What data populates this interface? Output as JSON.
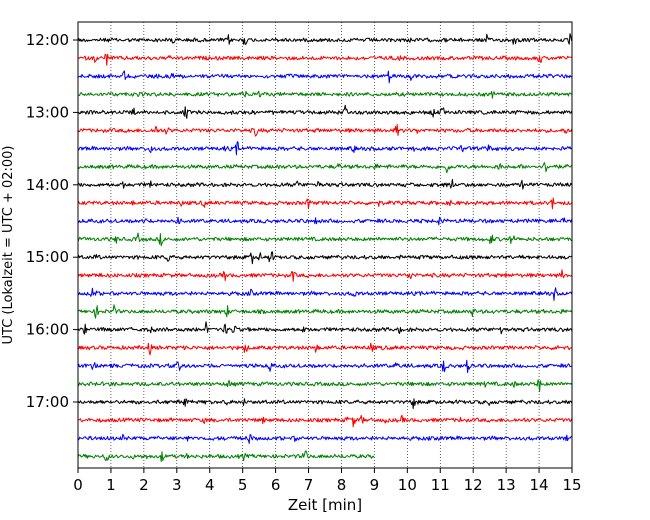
{
  "chart_data": {
    "type": "line",
    "title": "",
    "xlabel": "Zeit  [min]",
    "ylabel": "UTC (Lokalzeit = UTC + 02:00)",
    "xlim": [
      0,
      15
    ],
    "x_ticks": [
      "0",
      "1",
      "2",
      "3",
      "4",
      "5",
      "6",
      "7",
      "8",
      "9",
      "10",
      "11",
      "12",
      "13",
      "14",
      "15"
    ],
    "y_tick_labels": [
      "12:00",
      "13:00",
      "14:00",
      "15:00",
      "16:00",
      "17:00"
    ],
    "trace_minutes_per_row": 15,
    "start_time": "12:00",
    "last_trace_end_min": 9,
    "row_colors": [
      "#000000",
      "#ff0000",
      "#0000ff",
      "#008000"
    ],
    "grid": "vertical dotted lines at each minute",
    "legend": "none",
    "rows": [
      {
        "time": "12:00",
        "color": "#000000",
        "end_min": 15
      },
      {
        "time": "12:15",
        "color": "#ff0000",
        "end_min": 15
      },
      {
        "time": "12:30",
        "color": "#0000ff",
        "end_min": 15
      },
      {
        "time": "12:45",
        "color": "#008000",
        "end_min": 15
      },
      {
        "time": "13:00",
        "color": "#000000",
        "end_min": 15
      },
      {
        "time": "13:15",
        "color": "#ff0000",
        "end_min": 15
      },
      {
        "time": "13:30",
        "color": "#0000ff",
        "end_min": 15
      },
      {
        "time": "13:45",
        "color": "#008000",
        "end_min": 15
      },
      {
        "time": "14:00",
        "color": "#000000",
        "end_min": 15
      },
      {
        "time": "14:15",
        "color": "#ff0000",
        "end_min": 15
      },
      {
        "time": "14:30",
        "color": "#0000ff",
        "end_min": 15
      },
      {
        "time": "14:45",
        "color": "#008000",
        "end_min": 15
      },
      {
        "time": "15:00",
        "color": "#000000",
        "end_min": 15
      },
      {
        "time": "15:15",
        "color": "#ff0000",
        "end_min": 15
      },
      {
        "time": "15:30",
        "color": "#0000ff",
        "end_min": 15
      },
      {
        "time": "15:45",
        "color": "#008000",
        "end_min": 15
      },
      {
        "time": "16:00",
        "color": "#000000",
        "end_min": 15
      },
      {
        "time": "16:15",
        "color": "#ff0000",
        "end_min": 15
      },
      {
        "time": "16:30",
        "color": "#0000ff",
        "end_min": 15
      },
      {
        "time": "16:45",
        "color": "#008000",
        "end_min": 15
      },
      {
        "time": "17:00",
        "color": "#000000",
        "end_min": 15
      },
      {
        "time": "17:15",
        "color": "#ff0000",
        "end_min": 15
      },
      {
        "time": "17:30",
        "color": "#0000ff",
        "end_min": 15
      },
      {
        "time": "17:45",
        "color": "#008000",
        "end_min": 9
      }
    ]
  }
}
